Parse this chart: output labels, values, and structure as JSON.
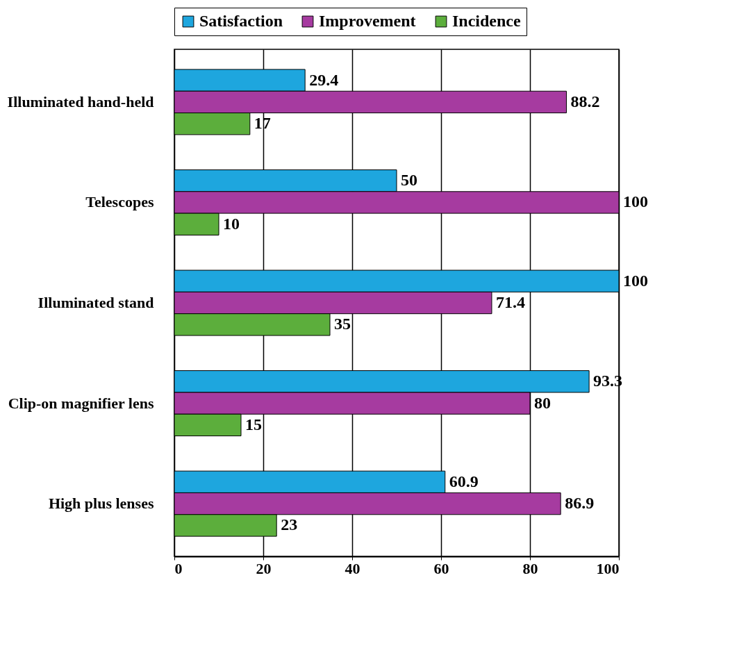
{
  "chart_data": {
    "type": "bar",
    "orientation": "horizontal",
    "categories": [
      "Illuminated hand-held",
      "Telescopes",
      "Illuminated stand",
      "Clip-on magnifier lens",
      "High plus lenses"
    ],
    "series": [
      {
        "name": "Satisfaction",
        "color": "#1ea6de",
        "values": [
          29.4,
          50,
          100,
          93.3,
          60.9
        ]
      },
      {
        "name": "Improvement",
        "color": "#a63ba0",
        "values": [
          88.2,
          100,
          71.4,
          80,
          86.9
        ]
      },
      {
        "name": "Incidence",
        "color": "#5cae3c",
        "values": [
          17,
          10,
          35,
          15,
          23
        ]
      }
    ],
    "xlim": [
      0,
      100
    ],
    "xticks": [
      0,
      20,
      40,
      60,
      80,
      100
    ],
    "grid": "x",
    "legend": "top",
    "data_labels": true
  }
}
